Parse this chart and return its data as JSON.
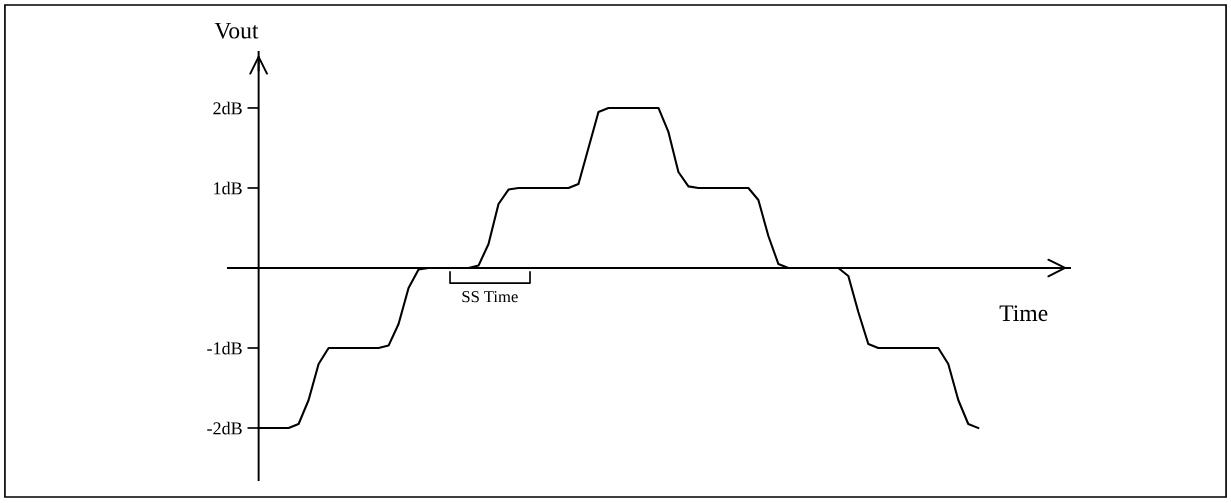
{
  "chart_data": {
    "type": "line",
    "xlabel": "Time",
    "ylabel": "Vout",
    "categories": [
      null,
      null,
      null,
      null,
      null,
      null,
      null,
      null,
      null,
      null,
      null,
      null,
      null,
      null,
      null,
      null,
      null,
      null,
      null,
      null,
      null,
      null,
      null,
      null,
      null,
      null,
      null,
      null,
      null,
      null,
      null,
      null,
      null,
      null,
      null,
      null,
      null,
      null,
      null,
      null,
      null,
      null,
      null,
      null,
      null,
      null,
      null,
      null,
      null,
      null,
      null,
      null,
      null,
      null,
      null,
      null,
      null,
      null,
      null,
      null,
      null,
      null,
      null,
      null,
      null,
      null,
      null,
      null,
      null,
      null,
      null,
      null,
      null
    ],
    "series": [
      {
        "color": "#000000",
        "values": [
          -2,
          -2,
          -2,
          -2,
          -1.95,
          -1.65,
          -1.2,
          -1,
          -1,
          -1,
          -1,
          -1,
          -1,
          -0.97,
          -0.7,
          -0.25,
          -0.02,
          0,
          0,
          0,
          0,
          0,
          0.03,
          0.3,
          0.8,
          0.98,
          1,
          1,
          1,
          1,
          1,
          1,
          1.05,
          1.5,
          1.95,
          2,
          2,
          2,
          2,
          2,
          2,
          1.7,
          1.2,
          1.02,
          1,
          1,
          1,
          1,
          1,
          1,
          0.85,
          0.4,
          0.05,
          0,
          0,
          0,
          0,
          0,
          0,
          -0.1,
          -0.55,
          -0.95,
          -1,
          -1,
          -1,
          -1,
          -1,
          -1,
          -1,
          -1.2,
          -1.65,
          -1.95,
          -2
        ]
      }
    ],
    "ylim": [
      -2.65,
      2.7
    ],
    "yticks": [
      {
        "value": -2,
        "label": "-2dB"
      },
      {
        "value": -1,
        "label": "-1dB"
      },
      {
        "value": 1,
        "label": "1dB"
      },
      {
        "value": 2,
        "label": "2dB"
      }
    ],
    "tick_labels": "y",
    "grid": false,
    "legend": false,
    "marker": "none",
    "line_style": "solid",
    "annotations": [
      "SS Time"
    ]
  }
}
